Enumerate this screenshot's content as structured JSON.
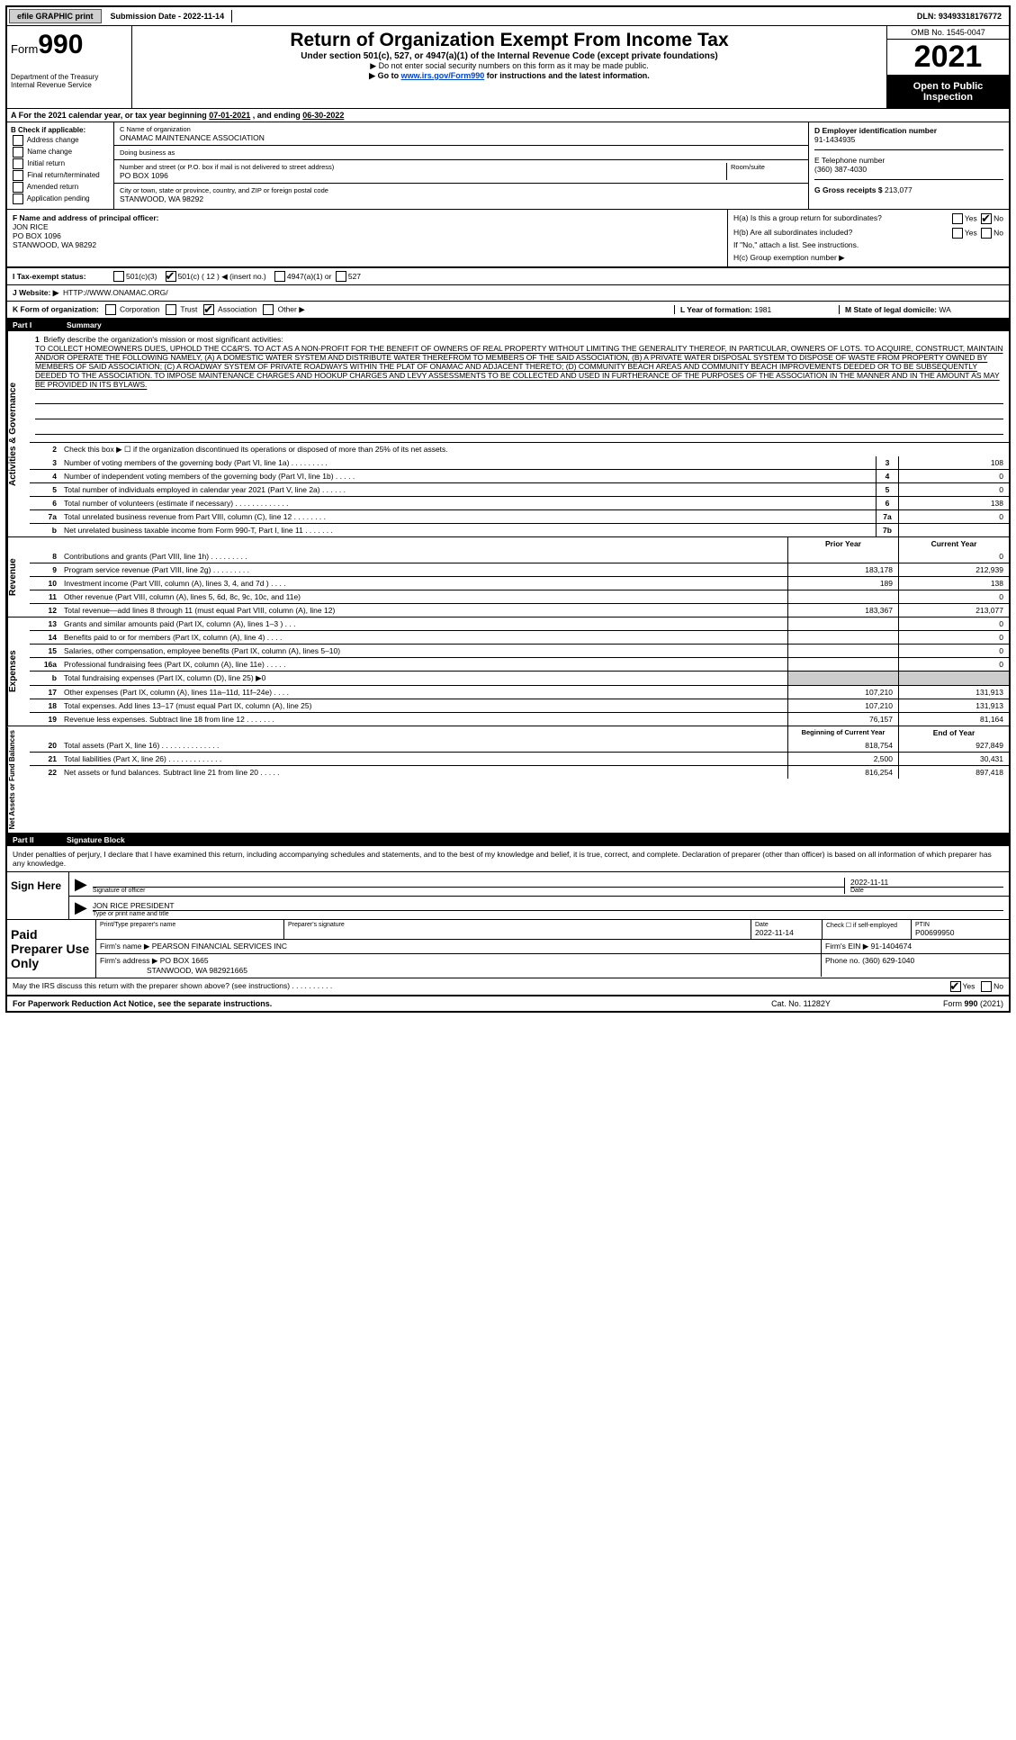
{
  "topbar": {
    "efile": "efile GRAPHIC print",
    "sub_date_label": "Submission Date - ",
    "sub_date": "2022-11-14",
    "dln_label": "DLN: ",
    "dln": "93493318176772"
  },
  "header": {
    "form_label": "Form",
    "form_num": "990",
    "dept": "Department of the Treasury\nInternal Revenue Service",
    "title": "Return of Organization Exempt From Income Tax",
    "subtitle": "Under section 501(c), 527, or 4947(a)(1) of the Internal Revenue Code (except private foundations)",
    "note1": "▶ Do not enter social security numbers on this form as it may be made public.",
    "note2_pre": "▶ Go to ",
    "note2_link": "www.irs.gov/Form990",
    "note2_post": " for instructions and the latest information.",
    "omb": "OMB No. 1545-0047",
    "year": "2021",
    "open": "Open to Public Inspection"
  },
  "section_a": {
    "text_pre": "A   For the 2021 calendar year, or tax year beginning ",
    "begin": "07-01-2021",
    "text_mid": " , and ending ",
    "end": "06-30-2022"
  },
  "col_b": {
    "title": "B Check if applicable:",
    "items": [
      "Address change",
      "Name change",
      "Initial return",
      "Final return/terminated",
      "Amended return",
      "Application pending"
    ]
  },
  "col_c": {
    "name_label": "C Name of organization",
    "name": "ONAMAC MAINTENANCE ASSOCIATION",
    "dba_label": "Doing business as",
    "dba": "",
    "addr_label": "Number and street (or P.O. box if mail is not delivered to street address)",
    "room_label": "Room/suite",
    "addr": "PO BOX 1096",
    "city_label": "City or town, state or province, country, and ZIP or foreign postal code",
    "city": "STANWOOD, WA  98292"
  },
  "col_d": {
    "ein_label": "D Employer identification number",
    "ein": "91-1434935",
    "phone_label": "E Telephone number",
    "phone": "(360) 387-4030",
    "gross_label": "G Gross receipts $",
    "gross": "213,077"
  },
  "row_f": {
    "label": "F  Name and address of principal officer:",
    "name": "JON RICE",
    "addr1": "PO BOX 1096",
    "addr2": "STANWOOD, WA  98292"
  },
  "row_h": {
    "ha": "H(a)  Is this a group return for subordinates?",
    "ha_yes": "Yes",
    "ha_no": "No",
    "hb": "H(b)  Are all subordinates included?",
    "hb_yes": "Yes",
    "hb_no": "No",
    "hb_note": "If \"No,\" attach a list. See instructions.",
    "hc": "H(c)  Group exemption number ▶"
  },
  "row_i": {
    "label": "I   Tax-exempt status:",
    "opt1": "501(c)(3)",
    "opt2": "501(c) ( 12 ) ◀ (insert no.)",
    "opt3": "4947(a)(1) or",
    "opt4": "527"
  },
  "row_j": {
    "label": "J   Website: ▶",
    "value": "HTTP://WWW.ONAMAC.ORG/"
  },
  "row_k": {
    "label": "K Form of organization:",
    "opts": [
      "Corporation",
      "Trust",
      "Association",
      "Other ▶"
    ],
    "l_label": "L Year of formation: ",
    "l_val": "1981",
    "m_label": "M State of legal domicile: ",
    "m_val": "WA"
  },
  "part1": {
    "num": "Part I",
    "title": "Summary",
    "vert1": "Activities & Governance",
    "mission_label": "Briefly describe the organization's mission or most significant activities:",
    "mission": "TO COLLECT HOMEOWNERS DUES, UPHOLD THE CC&R'S. TO ACT AS A NON-PROFIT FOR THE BENEFIT OF OWNERS OF REAL PROPERTY WITHOUT LIMITING THE GENERALITY THEREOF, IN PARTICULAR, OWNERS OF LOTS. TO ACQUIRE, CONSTRUCT, MAINTAIN AND/OR OPERATE THE FOLLOWING NAMELY, (A) A DOMESTIC WATER SYSTEM AND DISTRIBUTE WATER THEREFROM TO MEMBERS OF THE SAID ASSOCIATION, (B) A PRIVATE WATER DISPOSAL SYSTEM TO DISPOSE OF WASTE FROM PROPERTY OWNED BY MEMBERS OF SAID ASSOCIATION; (C) A ROADWAY SYSTEM OF PRIVATE ROADWAYS WITHIN THE PLAT OF ONAMAC AND ADJACENT THERETO; (D) COMMUNITY BEACH AREAS AND COMMUNITY BEACH IMPROVEMENTS DEEDED OR TO BE SUBSEQUENTLY DEEDED TO THE ASSOCIATION. TO IMPOSE MAINTENANCE CHARGES AND HOOKUP CHARGES AND LEVY ASSESSMENTS TO BE COLLECTED AND USED IN FURTHERANCE OF THE PURPOSES OF THE ASSOCIATION IN THE MANNER AND IN THE AMOUNT AS MAY BE PROVIDED IN ITS BYLAWS.",
    "line2": "Check this box ▶ ☐ if the organization discontinued its operations or disposed of more than 25% of its net assets.",
    "lines_gov": [
      {
        "n": "3",
        "d": "Number of voting members of the governing body (Part VI, line 1a)  .   .   .   .   .   .   .   .   .",
        "b": "3",
        "v": "108"
      },
      {
        "n": "4",
        "d": "Number of independent voting members of the governing body (Part VI, line 1b)  .   .   .   .   .",
        "b": "4",
        "v": "0"
      },
      {
        "n": "5",
        "d": "Total number of individuals employed in calendar year 2021 (Part V, line 2a)  .   .   .   .   .   .",
        "b": "5",
        "v": "0"
      },
      {
        "n": "6",
        "d": "Total number of volunteers (estimate if necessary)  .   .   .   .   .   .   .   .   .   .   .   .   .",
        "b": "6",
        "v": "138"
      },
      {
        "n": "7a",
        "d": "Total unrelated business revenue from Part VIII, column (C), line 12  .   .   .   .   .   .   .   .",
        "b": "7a",
        "v": "0"
      },
      {
        "n": "b",
        "d": "Net unrelated business taxable income from Form 990-T, Part I, line 11  .   .   .   .   .   .   .",
        "b": "7b",
        "v": ""
      }
    ],
    "vert2": "Revenue",
    "col_head_prior": "Prior Year",
    "col_head_curr": "Current Year",
    "lines_rev": [
      {
        "n": "8",
        "d": "Contributions and grants (Part VIII, line 1h)  .   .   .   .   .   .   .   .   .",
        "p": "",
        "c": "0"
      },
      {
        "n": "9",
        "d": "Program service revenue (Part VIII, line 2g)  .   .   .   .   .   .   .   .   .",
        "p": "183,178",
        "c": "212,939"
      },
      {
        "n": "10",
        "d": "Investment income (Part VIII, column (A), lines 3, 4, and 7d )  .   .   .   .",
        "p": "189",
        "c": "138"
      },
      {
        "n": "11",
        "d": "Other revenue (Part VIII, column (A), lines 5, 6d, 8c, 9c, 10c, and 11e)",
        "p": "",
        "c": "0"
      },
      {
        "n": "12",
        "d": "Total revenue—add lines 8 through 11 (must equal Part VIII, column (A), line 12)",
        "p": "183,367",
        "c": "213,077"
      }
    ],
    "vert3": "Expenses",
    "lines_exp": [
      {
        "n": "13",
        "d": "Grants and similar amounts paid (Part IX, column (A), lines 1–3 )  .   .   .",
        "p": "",
        "c": "0"
      },
      {
        "n": "14",
        "d": "Benefits paid to or for members (Part IX, column (A), line 4)  .   .   .   .",
        "p": "",
        "c": "0"
      },
      {
        "n": "15",
        "d": "Salaries, other compensation, employee benefits (Part IX, column (A), lines 5–10)",
        "p": "",
        "c": "0"
      },
      {
        "n": "16a",
        "d": "Professional fundraising fees (Part IX, column (A), line 11e)  .   .   .   .   .",
        "p": "",
        "c": "0"
      },
      {
        "n": "b",
        "d": "Total fundraising expenses (Part IX, column (D), line 25) ▶0",
        "p": "grey",
        "c": "grey"
      },
      {
        "n": "17",
        "d": "Other expenses (Part IX, column (A), lines 11a–11d, 11f–24e)  .   .   .   .",
        "p": "107,210",
        "c": "131,913"
      },
      {
        "n": "18",
        "d": "Total expenses. Add lines 13–17 (must equal Part IX, column (A), line 25)",
        "p": "107,210",
        "c": "131,913"
      },
      {
        "n": "19",
        "d": "Revenue less expenses. Subtract line 18 from line 12  .   .   .   .   .   .   .",
        "p": "76,157",
        "c": "81,164"
      }
    ],
    "vert4": "Net Assets or Fund Balances",
    "col_head_begin": "Beginning of Current Year",
    "col_head_end": "End of Year",
    "lines_net": [
      {
        "n": "20",
        "d": "Total assets (Part X, line 16)  .   .   .   .   .   .   .   .   .   .   .   .   .   .",
        "p": "818,754",
        "c": "927,849"
      },
      {
        "n": "21",
        "d": "Total liabilities (Part X, line 26)  .   .   .   .   .   .   .   .   .   .   .   .   .",
        "p": "2,500",
        "c": "30,431"
      },
      {
        "n": "22",
        "d": "Net assets or fund balances. Subtract line 21 from line 20  .   .   .   .   .",
        "p": "816,254",
        "c": "897,418"
      }
    ]
  },
  "part2": {
    "num": "Part II",
    "title": "Signature Block",
    "decl": "Under penalties of perjury, I declare that I have examined this return, including accompanying schedules and statements, and to the best of my knowledge and belief, it is true, correct, and complete. Declaration of preparer (other than officer) is based on all information of which preparer has any knowledge.",
    "sign_here": "Sign Here",
    "sig_officer_label": "Signature of officer",
    "sig_date_label": "Date",
    "sig_date": "2022-11-11",
    "officer_name": "JON RICE PRESIDENT",
    "officer_label": "Type or print name and title",
    "paid_prep": "Paid Preparer Use Only",
    "prep_name_label": "Print/Type preparer's name",
    "prep_sig_label": "Preparer's signature",
    "prep_date_label": "Date",
    "prep_date": "2022-11-14",
    "prep_check_label": "Check ☐ if self-employed",
    "ptin_label": "PTIN",
    "ptin": "P00699950",
    "firm_name_label": "Firm's name    ▶",
    "firm_name": "PEARSON FINANCIAL SERVICES INC",
    "firm_ein_label": "Firm's EIN ▶",
    "firm_ein": "91-1404674",
    "firm_addr_label": "Firm's address ▶",
    "firm_addr1": "PO BOX 1665",
    "firm_addr2": "STANWOOD, WA  982921665",
    "firm_phone_label": "Phone no.",
    "firm_phone": "(360) 629-1040",
    "discuss": "May the IRS discuss this return with the preparer shown above? (see instructions)  .   .   .   .   .   .   .   .   .   .",
    "discuss_yes": "Yes",
    "discuss_no": "No"
  },
  "footer": {
    "left": "For Paperwork Reduction Act Notice, see the separate instructions.",
    "mid": "Cat. No. 11282Y",
    "right": "Form 990 (2021)"
  },
  "colors": {
    "header_bg": "#000000",
    "grey_fill": "#cccccc",
    "link": "#0044cc"
  }
}
